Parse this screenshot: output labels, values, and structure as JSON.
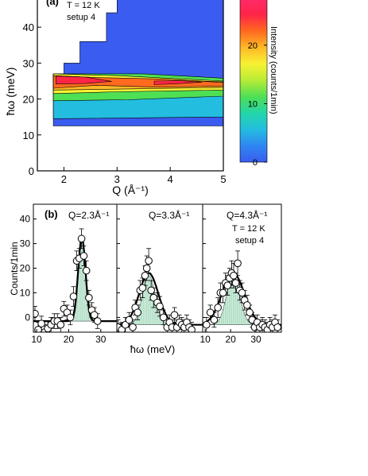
{
  "chart_data": [
    {
      "type": "heatmap",
      "panel_label": "(a)",
      "annotations": [
        "T = 12 K",
        "setup 4"
      ],
      "xlabel": "Q (Å⁻¹)",
      "ylabel": "ħω (meV)",
      "xlim": [
        1.5,
        5.0
      ],
      "ylim": [
        0,
        48
      ],
      "xticks": [
        2,
        3,
        4,
        5
      ],
      "yticks": [
        0,
        10,
        20,
        30,
        40
      ],
      "colorbar": {
        "label": "Intensity (counts/1min)",
        "range": [
          0,
          28
        ],
        "ticks": [
          0,
          10,
          20
        ],
        "colors": [
          "#3a5cf0",
          "#2f86f2",
          "#23bde0",
          "#23d6a8",
          "#4fdf55",
          "#b7ec36",
          "#f8f233",
          "#ffb827",
          "#ff6a1f",
          "#ff2547",
          "#ff2a6a"
        ]
      },
      "measured_region_outline": [
        [
          1.8,
          12.5
        ],
        [
          5.0,
          12.5
        ],
        [
          5.0,
          50
        ],
        [
          3.0,
          50
        ],
        [
          3.0,
          44
        ],
        [
          2.8,
          44
        ],
        [
          2.8,
          36
        ],
        [
          2.3,
          36
        ],
        [
          2.3,
          30
        ],
        [
          2.0,
          30
        ],
        [
          2.0,
          27
        ],
        [
          1.8,
          27
        ]
      ],
      "intensity_bands": [
        {
          "level": 6,
          "points": [
            [
              1.8,
              14.5
            ],
            [
              5.0,
              15.0
            ],
            [
              5.0,
              22.5
            ],
            [
              1.8,
              22.5
            ]
          ]
        },
        {
          "level": 11,
          "points": [
            [
              1.8,
              19.5
            ],
            [
              3.2,
              19.8
            ],
            [
              5.0,
              20.8
            ],
            [
              5.0,
              25.8
            ],
            [
              3.5,
              27.0
            ],
            [
              1.8,
              27.0
            ]
          ]
        },
        {
          "level": 16,
          "points": [
            [
              1.8,
              21.5
            ],
            [
              3.0,
              22.0
            ],
            [
              5.0,
              22.5
            ],
            [
              5.0,
              25.0
            ],
            [
              3.0,
              26.5
            ],
            [
              1.8,
              27.0
            ]
          ]
        },
        {
          "level": 20,
          "points": [
            [
              1.8,
              22.5
            ],
            [
              3.2,
              22.8
            ],
            [
              5.0,
              23.2
            ],
            [
              5.0,
              24.8
            ],
            [
              3.2,
              25.6
            ],
            [
              1.8,
              26.5
            ]
          ]
        },
        {
          "level": 22,
          "points": [
            [
              1.8,
              23.0
            ],
            [
              2.6,
              23.8
            ],
            [
              3.8,
              23.3
            ],
            [
              5.0,
              23.6
            ],
            [
              5.0,
              24.6
            ],
            [
              3.8,
              25.6
            ],
            [
              2.6,
              26.0
            ],
            [
              1.8,
              26.5
            ]
          ]
        },
        {
          "level": 25,
          "points": [
            [
              1.85,
              24.2
            ],
            [
              2.4,
              24.3
            ],
            [
              2.9,
              24.9
            ],
            [
              2.4,
              26.1
            ],
            [
              1.85,
              26.4
            ]
          ]
        },
        {
          "level": 24,
          "points": [
            [
              3.7,
              24.0
            ],
            [
              4.2,
              24.3
            ],
            [
              4.6,
              24.7
            ],
            [
              4.2,
              25.1
            ],
            [
              3.7,
              25.0
            ]
          ]
        }
      ]
    },
    {
      "type": "scatter",
      "panel_label": "(b)",
      "ylabel": "Counts/1min",
      "xlabel": "ħω (meV)",
      "ylim": [
        -6,
        46
      ],
      "yticks": [
        0,
        10,
        20,
        30,
        40
      ],
      "subpanels": [
        {
          "title": "Q=2.3Å⁻¹",
          "xlim": [
            9,
            35
          ],
          "xticks": [
            10,
            20,
            30
          ],
          "fit": {
            "center": 24.1,
            "sigma": 1.15,
            "amplitude": 34,
            "baseline": -1.5
          },
          "component": {
            "center": 24.1,
            "sigma": 1.0,
            "amplitude": 33
          },
          "points": [
            [
              9.5,
              1.5,
              3
            ],
            [
              10.5,
              -5,
              3
            ],
            [
              11.5,
              -2.5,
              3
            ],
            [
              12.5,
              -6,
              3
            ],
            [
              13.5,
              -4.5,
              3
            ],
            [
              14.5,
              -3,
              3
            ],
            [
              15.5,
              -1.5,
              3
            ],
            [
              16.5,
              -1.5,
              3
            ],
            [
              17.5,
              -3,
              3
            ],
            [
              18.5,
              3.5,
              3
            ],
            [
              19.5,
              2.0,
              3
            ],
            [
              20.5,
              0,
              3
            ],
            [
              21.5,
              8.5,
              4
            ],
            [
              22.5,
              23,
              4
            ],
            [
              23.3,
              24,
              4
            ],
            [
              24.0,
              32,
              4
            ],
            [
              24.7,
              25,
              4
            ],
            [
              25.5,
              19,
              4
            ],
            [
              26.3,
              8.0,
              3
            ],
            [
              27.2,
              3.0,
              3
            ],
            [
              28.0,
              1.0,
              3
            ],
            [
              29.0,
              -1.5,
              3
            ]
          ]
        },
        {
          "title": "Q=3.3Å⁻¹",
          "xlim": [
            10,
            45
          ],
          "xticks": [],
          "fit": {
            "center": 23.0,
            "sigma": 3.9,
            "amplitude": 21,
            "baseline": -3
          },
          "component": {
            "center": 23.0,
            "sigma": 2.6,
            "amplitude": 20
          },
          "points": [
            [
              10.5,
              -4,
              3
            ],
            [
              12.0,
              -5,
              3
            ],
            [
              13.5,
              -3,
              3
            ],
            [
              15.0,
              -1,
              3
            ],
            [
              16.5,
              -4,
              3
            ],
            [
              17.5,
              4,
              3
            ],
            [
              18.5,
              2,
              3
            ],
            [
              19.5,
              11,
              4
            ],
            [
              20.5,
              12,
              4
            ],
            [
              21.5,
              17,
              4
            ],
            [
              22.2,
              20,
              5
            ],
            [
              23.0,
              23,
              5
            ],
            [
              24.0,
              11,
              4
            ],
            [
              25.0,
              8,
              4
            ],
            [
              26.5,
              6,
              4
            ],
            [
              27.5,
              4.5,
              4
            ],
            [
              29.0,
              0,
              3
            ],
            [
              30.5,
              -4,
              3
            ],
            [
              31.5,
              -2,
              3
            ],
            [
              32.5,
              -4,
              3
            ],
            [
              33.5,
              1,
              3
            ],
            [
              34.5,
              -4,
              3
            ],
            [
              35.5,
              -2,
              3
            ],
            [
              36.5,
              -3,
              3
            ],
            [
              37.5,
              -4,
              3
            ],
            [
              38.5,
              -2,
              3
            ],
            [
              39.5,
              -4,
              3
            ],
            [
              40.5,
              -5,
              3
            ]
          ]
        },
        {
          "title": "Q=4.3Å⁻¹",
          "annotations": [
            "T = 12 K",
            "setup 4"
          ],
          "xlim": [
            9,
            40
          ],
          "xticks": [
            10,
            20,
            30
          ],
          "fit": {
            "center": 21.0,
            "sigma": 4.4,
            "amplitude": 21,
            "baseline": -3
          },
          "component": {
            "center": 21.0,
            "sigma": 2.6,
            "amplitude": 20
          },
          "points": [
            [
              10.5,
              -3,
              3
            ],
            [
              12.0,
              2,
              3
            ],
            [
              13.5,
              -1,
              3
            ],
            [
              15.0,
              4,
              4
            ],
            [
              16.0,
              10,
              4
            ],
            [
              17.0,
              10,
              4
            ],
            [
              18.0,
              14,
              4
            ],
            [
              18.8,
              13,
              4
            ],
            [
              19.6,
              16,
              4
            ],
            [
              20.4,
              18,
              5
            ],
            [
              21.2,
              17,
              5
            ],
            [
              22.0,
              14,
              4
            ],
            [
              22.8,
              22,
              5
            ],
            [
              23.6,
              11,
              4
            ],
            [
              24.5,
              10,
              4
            ],
            [
              25.5,
              7,
              4
            ],
            [
              26.5,
              5,
              4
            ],
            [
              27.5,
              2,
              3
            ],
            [
              28.5,
              -1,
              3
            ],
            [
              29.5,
              -4,
              3
            ],
            [
              30.5,
              -2,
              3
            ],
            [
              31.5,
              -4,
              3
            ],
            [
              32.5,
              -3,
              3
            ],
            [
              33.5,
              -4,
              3
            ],
            [
              34.5,
              -5,
              3
            ],
            [
              35.5,
              -3,
              3
            ],
            [
              36.5,
              -4,
              3
            ],
            [
              37.5,
              -2,
              3
            ],
            [
              38.5,
              -4,
              3
            ]
          ]
        }
      ]
    }
  ]
}
